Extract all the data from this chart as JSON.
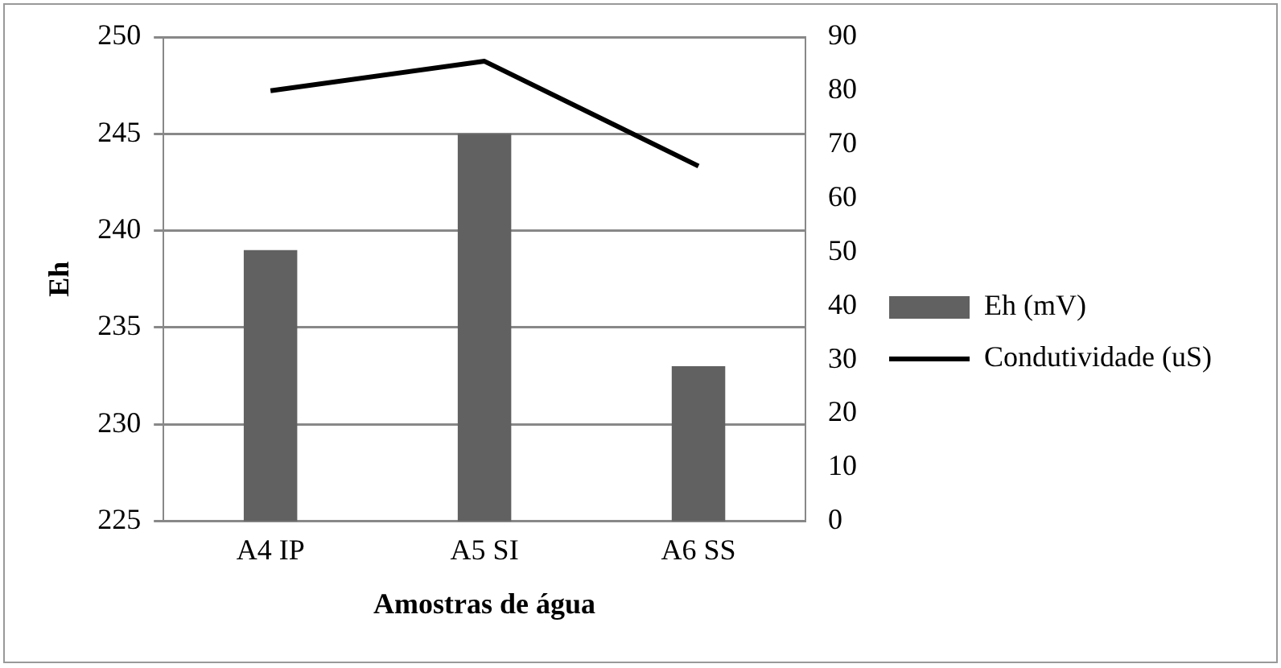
{
  "chart_data": {
    "type": "bar",
    "xlabel": "Amostras de água",
    "ylabel": "Eh",
    "categories": [
      "A4 IP",
      "A5 SI",
      "A6 SS"
    ],
    "series": [
      {
        "name": "Eh (mV)",
        "color": "#616161",
        "values": [
          239,
          245,
          233
        ]
      },
      {
        "name": "Condutividade (uS)",
        "type": "line",
        "axis": "y2",
        "color": "#000000",
        "values": [
          80,
          85.5,
          66
        ]
      }
    ],
    "ylim": [
      225,
      250
    ],
    "yticks": [
      225,
      230,
      235,
      240,
      245,
      250
    ],
    "y2lim": [
      0,
      90
    ],
    "y2ticks": [
      0,
      10,
      20,
      30,
      40,
      50,
      60,
      70,
      80,
      90
    ],
    "grid": "y",
    "legend": "right"
  }
}
